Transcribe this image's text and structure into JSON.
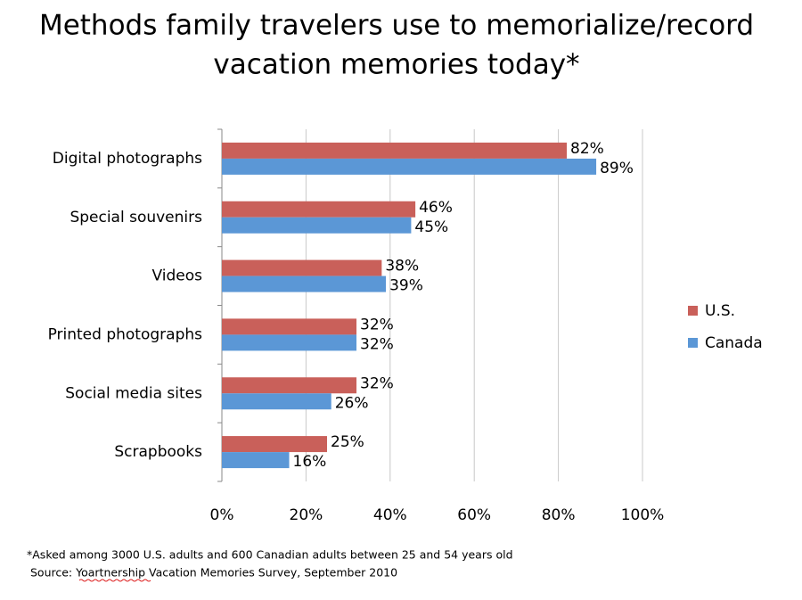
{
  "chart_data": {
    "type": "bar",
    "orientation": "horizontal",
    "title": [
      "Methods family travelers use to memorialize/record",
      "vacation memories today*"
    ],
    "categories": [
      "Digital photographs",
      "Special souvenirs",
      "Videos",
      "Printed photographs",
      "Social media sites",
      "Scrapbooks"
    ],
    "series": [
      {
        "name": "U.S.",
        "color": "#c9605a",
        "values": [
          82,
          46,
          38,
          32,
          32,
          25
        ],
        "value_labels": [
          "82%",
          "46%",
          "38%",
          "32%",
          "32%",
          "25%"
        ]
      },
      {
        "name": "Canada",
        "color": "#5b97d6",
        "values": [
          89,
          45,
          39,
          32,
          26,
          16
        ],
        "value_labels": [
          "89%",
          "45%",
          "39%",
          "32%",
          "26%",
          "16%"
        ]
      }
    ],
    "xlim": [
      0,
      100
    ],
    "xticks": [
      {
        "value": 0,
        "label": "0%"
      },
      {
        "value": 20,
        "label": "20%"
      },
      {
        "value": 40,
        "label": "40%"
      },
      {
        "value": 60,
        "label": "60%"
      },
      {
        "value": 80,
        "label": "80%"
      },
      {
        "value": 100,
        "label": "100%"
      }
    ],
    "grid": true,
    "legend": "right",
    "footnote": "*Asked among 3000 U.S. adults and 600 Canadian adults between 25 and 54 years old",
    "source": "Source: Yoartnership Vacation Memories Survey, September 2010"
  }
}
